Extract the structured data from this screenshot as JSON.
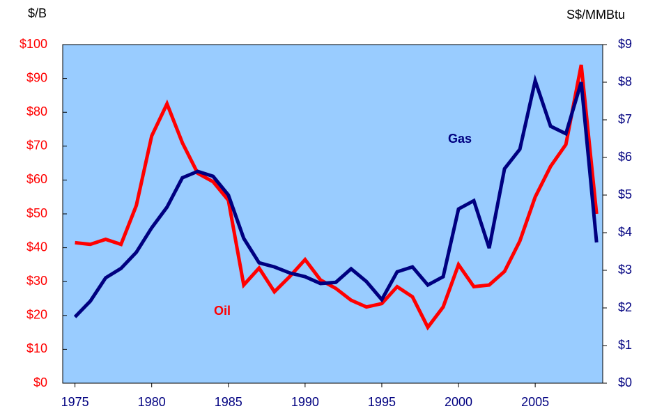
{
  "chart_data": {
    "type": "line",
    "y_label": "$/B",
    "y2_label": "S$/MMBtu",
    "annotations": [
      "Oil",
      "Gas"
    ],
    "x": [
      1975,
      1976,
      1977,
      1978,
      1979,
      1980,
      1981,
      1982,
      1983,
      1984,
      1985,
      1986,
      1987,
      1988,
      1989,
      1990,
      1991,
      1992,
      1993,
      1994,
      1995,
      1996,
      1997,
      1998,
      1999,
      2000,
      2001,
      2002,
      2003,
      2004,
      2005,
      2006,
      2007,
      2008,
      2009
    ],
    "xlim": [
      1974.2,
      2009.4
    ],
    "xticks": [
      1975,
      1980,
      1985,
      1990,
      1995,
      2000,
      2005
    ],
    "ylim": [
      0,
      100
    ],
    "yticks": [
      {
        "value": 0,
        "label": "$0"
      },
      {
        "value": 10,
        "label": "$10"
      },
      {
        "value": 20,
        "label": "$20"
      },
      {
        "value": 30,
        "label": "$30"
      },
      {
        "value": 40,
        "label": "$40"
      },
      {
        "value": 50,
        "label": "$50"
      },
      {
        "value": 60,
        "label": "$60"
      },
      {
        "value": 70,
        "label": "$70"
      },
      {
        "value": 80,
        "label": "$80"
      },
      {
        "value": 90,
        "label": "$90"
      },
      {
        "value": 100,
        "label": "$100"
      }
    ],
    "y2lim": [
      0,
      9
    ],
    "y2ticks": [
      {
        "value": 0,
        "label": "$0"
      },
      {
        "value": 1,
        "label": "$1"
      },
      {
        "value": 2,
        "label": "$2"
      },
      {
        "value": 3,
        "label": "$3"
      },
      {
        "value": 4,
        "label": "$4"
      },
      {
        "value": 5,
        "label": "$5"
      },
      {
        "value": 6,
        "label": "$6"
      },
      {
        "value": 7,
        "label": "$7"
      },
      {
        "value": 8,
        "label": "$8"
      },
      {
        "value": 9,
        "label": "$9"
      }
    ],
    "series": [
      {
        "name": "Oil",
        "color": "#ff0000",
        "values": [
          41.5,
          41,
          42.5,
          41,
          52.5,
          73,
          82.5,
          71,
          62,
          59.5,
          54,
          29,
          34,
          27,
          31.5,
          36.5,
          30.5,
          28,
          24.5,
          22.5,
          23.5,
          28.5,
          25.5,
          16.5,
          22.5,
          35,
          28.5,
          29,
          33,
          42,
          55,
          64,
          70.5,
          94,
          50
        ]
      },
      {
        "name": "Gas",
        "color": "#000080",
        "axis": "y2",
        "values": [
          1.76,
          2.18,
          2.8,
          3.05,
          3.48,
          4.13,
          4.68,
          5.46,
          5.63,
          5.5,
          5.0,
          3.85,
          3.2,
          3.09,
          2.93,
          2.83,
          2.65,
          2.68,
          3.04,
          2.7,
          2.22,
          2.96,
          3.09,
          2.61,
          2.83,
          4.63,
          4.85,
          3.59,
          5.7,
          6.22,
          8.04,
          6.83,
          6.63,
          8.0,
          3.74
        ]
      }
    ]
  }
}
